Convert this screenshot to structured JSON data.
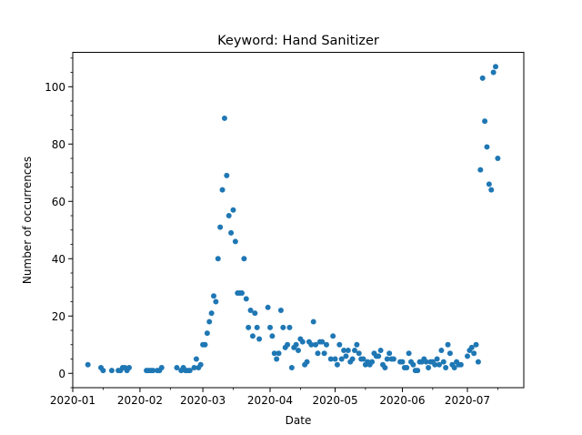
{
  "chart_data": {
    "type": "scatter",
    "title": "Keyword: Hand Sanitizer",
    "xlabel": "Date",
    "ylabel": "Number of occurrences",
    "xlim": [
      "2020-01-01",
      "2020-07-27"
    ],
    "ylim": [
      -5,
      112
    ],
    "x_ticks": [
      "2020-01",
      "2020-02",
      "2020-03",
      "2020-04",
      "2020-05",
      "2020-06",
      "2020-07"
    ],
    "y_ticks": [
      "0",
      "20",
      "40",
      "60",
      "80",
      "100"
    ],
    "grid": false,
    "marker_color": "#1f77b4",
    "series": [
      {
        "points": [
          [
            "2020-01-08",
            3
          ],
          [
            "2020-01-14",
            2
          ],
          [
            "2020-01-15",
            1
          ],
          [
            "2020-01-19",
            1
          ],
          [
            "2020-01-22",
            1
          ],
          [
            "2020-01-23",
            1
          ],
          [
            "2020-01-24",
            2
          ],
          [
            "2020-01-25",
            2
          ],
          [
            "2020-01-26",
            1
          ],
          [
            "2020-01-27",
            2
          ],
          [
            "2020-02-04",
            1
          ],
          [
            "2020-02-05",
            1
          ],
          [
            "2020-02-06",
            1
          ],
          [
            "2020-02-07",
            1
          ],
          [
            "2020-02-09",
            1
          ],
          [
            "2020-02-10",
            1
          ],
          [
            "2020-02-11",
            2
          ],
          [
            "2020-02-18",
            2
          ],
          [
            "2020-02-20",
            1
          ],
          [
            "2020-02-21",
            2
          ],
          [
            "2020-02-22",
            1
          ],
          [
            "2020-02-23",
            1
          ],
          [
            "2020-02-24",
            1
          ],
          [
            "2020-02-26",
            2
          ],
          [
            "2020-02-27",
            5
          ],
          [
            "2020-02-28",
            2
          ],
          [
            "2020-02-29",
            3
          ],
          [
            "2020-03-01",
            10
          ],
          [
            "2020-03-02",
            10
          ],
          [
            "2020-03-03",
            14
          ],
          [
            "2020-03-04",
            18
          ],
          [
            "2020-03-05",
            21
          ],
          [
            "2020-03-06",
            27
          ],
          [
            "2020-03-07",
            25
          ],
          [
            "2020-03-08",
            40
          ],
          [
            "2020-03-09",
            51
          ],
          [
            "2020-03-10",
            64
          ],
          [
            "2020-03-11",
            89
          ],
          [
            "2020-03-12",
            69
          ],
          [
            "2020-03-13",
            55
          ],
          [
            "2020-03-14",
            49
          ],
          [
            "2020-03-15",
            57
          ],
          [
            "2020-03-16",
            46
          ],
          [
            "2020-03-17",
            28
          ],
          [
            "2020-03-18",
            28
          ],
          [
            "2020-03-19",
            28
          ],
          [
            "2020-03-20",
            40
          ],
          [
            "2020-03-21",
            26
          ],
          [
            "2020-03-22",
            16
          ],
          [
            "2020-03-23",
            22
          ],
          [
            "2020-03-24",
            13
          ],
          [
            "2020-03-25",
            21
          ],
          [
            "2020-03-26",
            16
          ],
          [
            "2020-03-27",
            12
          ],
          [
            "2020-03-31",
            23
          ],
          [
            "2020-04-01",
            16
          ],
          [
            "2020-04-02",
            13
          ],
          [
            "2020-04-03",
            7
          ],
          [
            "2020-04-04",
            5
          ],
          [
            "2020-04-05",
            7
          ],
          [
            "2020-04-06",
            22
          ],
          [
            "2020-04-07",
            16
          ],
          [
            "2020-04-08",
            9
          ],
          [
            "2020-04-09",
            10
          ],
          [
            "2020-04-10",
            16
          ],
          [
            "2020-04-11",
            2
          ],
          [
            "2020-04-12",
            9
          ],
          [
            "2020-04-13",
            10
          ],
          [
            "2020-04-14",
            8
          ],
          [
            "2020-04-15",
            12
          ],
          [
            "2020-04-16",
            11
          ],
          [
            "2020-04-17",
            3
          ],
          [
            "2020-04-18",
            4
          ],
          [
            "2020-04-19",
            11
          ],
          [
            "2020-04-20",
            10
          ],
          [
            "2020-04-21",
            18
          ],
          [
            "2020-04-22",
            10
          ],
          [
            "2020-04-23",
            7
          ],
          [
            "2020-04-24",
            11
          ],
          [
            "2020-04-25",
            11
          ],
          [
            "2020-04-26",
            7
          ],
          [
            "2020-04-27",
            10
          ],
          [
            "2020-04-29",
            5
          ],
          [
            "2020-04-30",
            13
          ],
          [
            "2020-05-01",
            5
          ],
          [
            "2020-05-02",
            3
          ],
          [
            "2020-05-03",
            10
          ],
          [
            "2020-05-04",
            5
          ],
          [
            "2020-05-05",
            8
          ],
          [
            "2020-05-06",
            6
          ],
          [
            "2020-05-07",
            8
          ],
          [
            "2020-05-08",
            4
          ],
          [
            "2020-05-09",
            5
          ],
          [
            "2020-05-10",
            8
          ],
          [
            "2020-05-11",
            10
          ],
          [
            "2020-05-12",
            7
          ],
          [
            "2020-05-13",
            5
          ],
          [
            "2020-05-14",
            5
          ],
          [
            "2020-05-15",
            3
          ],
          [
            "2020-05-16",
            4
          ],
          [
            "2020-05-17",
            3
          ],
          [
            "2020-05-18",
            4
          ],
          [
            "2020-05-19",
            7
          ],
          [
            "2020-05-20",
            6
          ],
          [
            "2020-05-21",
            6
          ],
          [
            "2020-05-22",
            8
          ],
          [
            "2020-05-23",
            3
          ],
          [
            "2020-05-24",
            2
          ],
          [
            "2020-05-25",
            5
          ],
          [
            "2020-05-26",
            7
          ],
          [
            "2020-05-27",
            5
          ],
          [
            "2020-05-28",
            5
          ],
          [
            "2020-05-31",
            4
          ],
          [
            "2020-06-01",
            4
          ],
          [
            "2020-06-02",
            2
          ],
          [
            "2020-06-03",
            2
          ],
          [
            "2020-06-04",
            7
          ],
          [
            "2020-06-05",
            4
          ],
          [
            "2020-06-06",
            3
          ],
          [
            "2020-06-07",
            1
          ],
          [
            "2020-06-08",
            1
          ],
          [
            "2020-06-09",
            4
          ],
          [
            "2020-06-10",
            4
          ],
          [
            "2020-06-11",
            5
          ],
          [
            "2020-06-12",
            4
          ],
          [
            "2020-06-13",
            2
          ],
          [
            "2020-06-14",
            4
          ],
          [
            "2020-06-15",
            4
          ],
          [
            "2020-06-16",
            3
          ],
          [
            "2020-06-17",
            5
          ],
          [
            "2020-06-18",
            3
          ],
          [
            "2020-06-19",
            8
          ],
          [
            "2020-06-20",
            4
          ],
          [
            "2020-06-21",
            2
          ],
          [
            "2020-06-22",
            10
          ],
          [
            "2020-06-23",
            7
          ],
          [
            "2020-06-24",
            3
          ],
          [
            "2020-06-25",
            2
          ],
          [
            "2020-06-26",
            4
          ],
          [
            "2020-06-27",
            3
          ],
          [
            "2020-06-28",
            3
          ],
          [
            "2020-07-01",
            6
          ],
          [
            "2020-07-02",
            8
          ],
          [
            "2020-07-03",
            9
          ],
          [
            "2020-07-04",
            7
          ],
          [
            "2020-07-05",
            10
          ],
          [
            "2020-07-06",
            4
          ],
          [
            "2020-07-07",
            71
          ],
          [
            "2020-07-08",
            103
          ],
          [
            "2020-07-09",
            88
          ],
          [
            "2020-07-10",
            79
          ],
          [
            "2020-07-11",
            66
          ],
          [
            "2020-07-12",
            64
          ],
          [
            "2020-07-13",
            105
          ],
          [
            "2020-07-14",
            107
          ],
          [
            "2020-07-15",
            75
          ]
        ]
      }
    ]
  }
}
